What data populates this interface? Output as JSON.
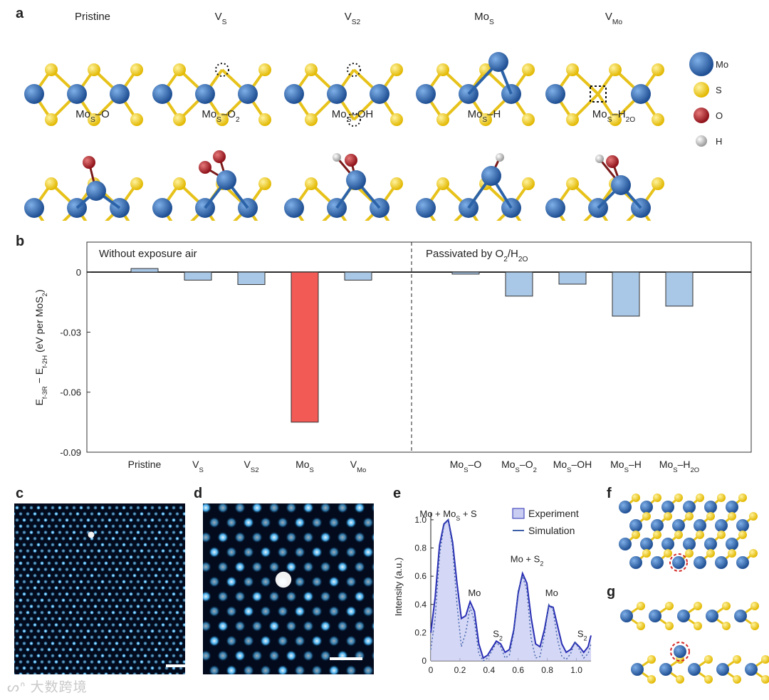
{
  "panels": {
    "a": "a",
    "b": "b",
    "c": "c",
    "d": "d",
    "e": "e",
    "f": "f",
    "g": "g"
  },
  "panel_a": {
    "structures_row1": [
      "Pristine",
      "V_S",
      "V_S2",
      "Mo_S",
      "V_Mo"
    ],
    "structures_row2": [
      "Mo_S–O",
      "Mo_S–O_2",
      "Mo_S–OH",
      "Mo_S–H",
      "Mo_S–H_2O"
    ],
    "legend": [
      {
        "label": "Mo",
        "color": "#2c63a8"
      },
      {
        "label": "S",
        "color": "#f3d21c"
      },
      {
        "label": "O",
        "color": "#b3222b"
      },
      {
        "label": "H",
        "color": "#bdbdbd"
      }
    ]
  },
  "chart_data": [
    {
      "type": "bar",
      "panel": "b",
      "ylabel": "E_f-3R − E_f-2H (eV per MoS_2)",
      "ylim": [
        -0.09,
        0.015
      ],
      "yticks": [
        0,
        -0.03,
        -0.06,
        -0.09
      ],
      "ytick_labels": [
        "0",
        "-0.03",
        "-0.06",
        "-0.09"
      ],
      "groups": [
        {
          "title": "Without exposure air",
          "categories": [
            "Pristine",
            "V_S",
            "V_S2",
            "Mo_S",
            "V_Mo"
          ],
          "values": [
            0.0018,
            -0.004,
            -0.0062,
            -0.075,
            -0.004
          ]
        },
        {
          "title": "Passivated by O_2/H_2O",
          "categories": [
            "Mo_S–O",
            "Mo_S–O_2",
            "Mo_S–OH",
            "Mo_S–H",
            "Mo_S–H_2O"
          ],
          "values": [
            -0.001,
            -0.012,
            -0.006,
            -0.022,
            -0.017
          ]
        }
      ],
      "highlight_category": "Mo_S",
      "colors": {
        "bar": "#a9c7e6",
        "bar_dark": "#5e8fc4",
        "highlight": "#f25a56"
      }
    },
    {
      "type": "line",
      "panel": "e",
      "xlabel": "",
      "ylabel": "Intensity (a.u.)",
      "xlim": [
        0,
        1.1
      ],
      "ylim": [
        0,
        1.05
      ],
      "xticks": [
        0,
        0.2,
        0.4,
        0.6,
        0.8,
        1.0
      ],
      "xtick_labels": [
        "0",
        "0.2",
        "0.4",
        "0.6",
        "0.8",
        "1.0"
      ],
      "yticks": [
        0,
        0.2,
        0.4,
        0.6,
        0.8,
        1.0
      ],
      "ytick_labels": [
        "0",
        "0.2",
        "0.4",
        "0.6",
        "0.8",
        "1.0"
      ],
      "series": [
        {
          "name": "Experiment",
          "x": [
            0,
            0.03,
            0.06,
            0.09,
            0.12,
            0.15,
            0.18,
            0.21,
            0.24,
            0.27,
            0.3,
            0.33,
            0.36,
            0.39,
            0.42,
            0.45,
            0.48,
            0.51,
            0.54,
            0.57,
            0.6,
            0.63,
            0.66,
            0.69,
            0.72,
            0.75,
            0.78,
            0.81,
            0.84,
            0.87,
            0.9,
            0.93,
            0.96,
            0.99,
            1.02,
            1.05,
            1.08,
            1.1
          ],
          "values": [
            0.2,
            0.45,
            0.82,
            0.97,
            1.0,
            0.84,
            0.55,
            0.3,
            0.32,
            0.42,
            0.35,
            0.12,
            0.02,
            0.04,
            0.09,
            0.14,
            0.12,
            0.06,
            0.08,
            0.22,
            0.48,
            0.62,
            0.55,
            0.3,
            0.12,
            0.1,
            0.22,
            0.39,
            0.38,
            0.25,
            0.12,
            0.06,
            0.08,
            0.13,
            0.1,
            0.06,
            0.1,
            0.18
          ]
        },
        {
          "name": "Simulation",
          "x": [
            0,
            0.03,
            0.06,
            0.09,
            0.12,
            0.15,
            0.18,
            0.21,
            0.24,
            0.27,
            0.3,
            0.33,
            0.36,
            0.39,
            0.42,
            0.45,
            0.48,
            0.51,
            0.54,
            0.57,
            0.6,
            0.63,
            0.66,
            0.69,
            0.72,
            0.75,
            0.78,
            0.81,
            0.84,
            0.87,
            0.9,
            0.93,
            0.96,
            0.99,
            1.02,
            1.05,
            1.08,
            1.1
          ],
          "values": [
            0.08,
            0.3,
            0.75,
            0.96,
            1.0,
            0.8,
            0.4,
            0.1,
            0.2,
            0.38,
            0.28,
            0.05,
            0.0,
            0.02,
            0.07,
            0.13,
            0.1,
            0.02,
            0.04,
            0.2,
            0.5,
            0.6,
            0.5,
            0.15,
            0.02,
            0.03,
            0.18,
            0.4,
            0.36,
            0.15,
            0.03,
            0.01,
            0.05,
            0.14,
            0.08,
            0.02,
            0.05,
            0.12
          ]
        }
      ],
      "annotations": [
        "Mo + Mo_S + S",
        "Mo",
        "S_2",
        "Mo + S_2",
        "Mo",
        "S_2"
      ],
      "legend": [
        "Experiment",
        "Simulation"
      ],
      "colors": {
        "experiment": "#2a2fb3",
        "fill": "#c9cdf2",
        "simulation": "#3c5fa8"
      }
    }
  ]
}
